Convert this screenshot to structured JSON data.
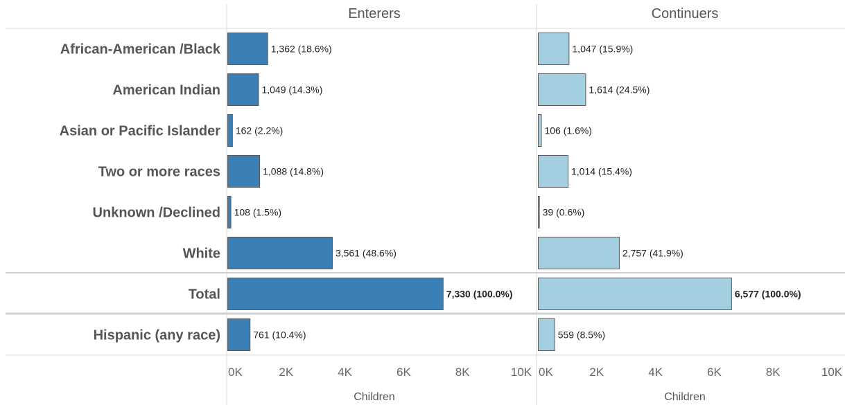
{
  "chart_data": {
    "type": "bar",
    "orientation": "horizontal",
    "categories": [
      "African-American /Black",
      "American Indian",
      "Asian or Pacific Islander",
      "Two or more races",
      "Unknown /Declined",
      "White",
      "Total",
      "Hispanic (any race)"
    ],
    "series": [
      {
        "name": "Enterers",
        "color": "#3a7fb6",
        "values": [
          1362,
          1049,
          162,
          1088,
          108,
          3561,
          7330,
          761
        ],
        "labels": [
          "1,362 (18.6%)",
          "1,049 (14.3%)",
          "162 (2.2%)",
          "1,088 (14.8%)",
          "108 (1.5%)",
          "3,561 (48.6%)",
          "7,330 (100.0%)",
          "761 (10.4%)"
        ]
      },
      {
        "name": "Continuers",
        "color": "#a3cfe0",
        "values": [
          1047,
          1614,
          106,
          1014,
          39,
          2757,
          6577,
          559
        ],
        "labels": [
          "1,047 (15.9%)",
          "1,614 (24.5%)",
          "106 (1.6%)",
          "1,014 (15.4%)",
          "39 (0.6%)",
          "2,757 (41.9%)",
          "6,577 (100.0%)",
          "559 (8.5%)"
        ]
      }
    ],
    "bold_categories": [
      "Total"
    ],
    "xlabel": "Children",
    "xlim": [
      0,
      10000
    ],
    "xticks": [
      0,
      2000,
      4000,
      6000,
      8000,
      10000
    ],
    "xtick_labels": [
      "0K",
      "2K",
      "4K",
      "6K",
      "8K",
      "10K"
    ],
    "grid": false,
    "legend": "none"
  }
}
